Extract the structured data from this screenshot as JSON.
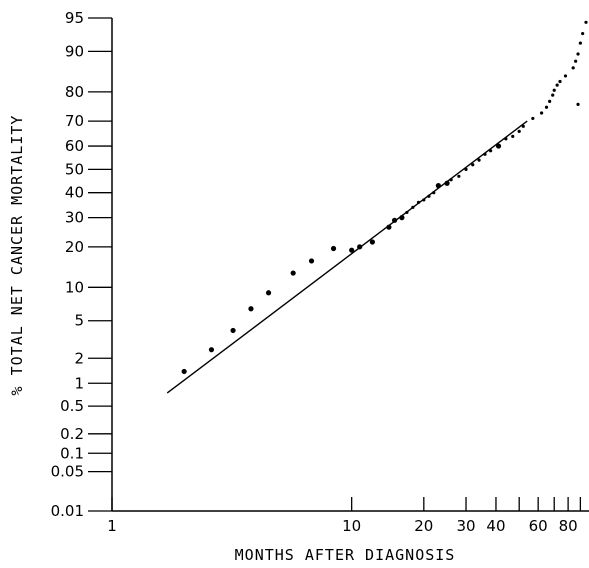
{
  "chart_data": {
    "type": "scatter",
    "title": "",
    "xlabel": "MONTHS AFTER DIAGNOSIS",
    "ylabel": "% TOTAL NET CANCER MORTALITY",
    "x_scale": "log",
    "y_scale": "probability",
    "xlim": [
      1,
      95
    ],
    "ylim": [
      0.01,
      95
    ],
    "grid": false,
    "legend": "none",
    "x_ticks": [
      {
        "value": 1,
        "label": "1"
      },
      {
        "value": 10,
        "label": "10"
      },
      {
        "value": 20,
        "label": "20"
      },
      {
        "value": 30,
        "label": "30"
      },
      {
        "value": 40,
        "label": "40"
      },
      {
        "value": 50,
        "label": ""
      },
      {
        "value": 60,
        "label": "60"
      },
      {
        "value": 70,
        "label": ""
      },
      {
        "value": 80,
        "label": "80"
      },
      {
        "value": 90,
        "label": ""
      }
    ],
    "y_ticks": [
      {
        "value": 0.01,
        "label": "0.01"
      },
      {
        "value": 0.05,
        "label": "0.05"
      },
      {
        "value": 0.1,
        "label": "0.1"
      },
      {
        "value": 0.2,
        "label": "0.2"
      },
      {
        "value": 0.5,
        "label": "0.5"
      },
      {
        "value": 1,
        "label": "1"
      },
      {
        "value": 2,
        "label": "2"
      },
      {
        "value": 5,
        "label": "5"
      },
      {
        "value": 10,
        "label": "10"
      },
      {
        "value": 20,
        "label": "20"
      },
      {
        "value": 30,
        "label": "30"
      },
      {
        "value": 40,
        "label": "40"
      },
      {
        "value": 50,
        "label": "50"
      },
      {
        "value": 60,
        "label": "60"
      },
      {
        "value": 70,
        "label": "70"
      },
      {
        "value": 80,
        "label": "80"
      },
      {
        "value": 90,
        "label": "90"
      },
      {
        "value": 95,
        "label": "95"
      }
    ],
    "points": [
      {
        "x": 2.0,
        "y": 1.4,
        "size": "large"
      },
      {
        "x": 2.6,
        "y": 2.5,
        "size": "large"
      },
      {
        "x": 3.2,
        "y": 4.0,
        "size": "large"
      },
      {
        "x": 3.8,
        "y": 6.5,
        "size": "large"
      },
      {
        "x": 4.5,
        "y": 9.0,
        "size": "large"
      },
      {
        "x": 5.7,
        "y": 13.0,
        "size": "large"
      },
      {
        "x": 6.8,
        "y": 16.0,
        "size": "large"
      },
      {
        "x": 8.4,
        "y": 19.5,
        "size": "large"
      },
      {
        "x": 10.0,
        "y": 19.0,
        "size": "large"
      },
      {
        "x": 10.8,
        "y": 20.0,
        "size": "large"
      },
      {
        "x": 12.2,
        "y": 21.5,
        "size": "large"
      },
      {
        "x": 14.3,
        "y": 26.5,
        "size": "large"
      },
      {
        "x": 15.1,
        "y": 29.0,
        "size": "large"
      },
      {
        "x": 16.2,
        "y": 30.0,
        "size": "large"
      },
      {
        "x": 17.0,
        "y": 32.0,
        "size": "small"
      },
      {
        "x": 18.0,
        "y": 34.0,
        "size": "small"
      },
      {
        "x": 19.0,
        "y": 36.0,
        "size": "small"
      },
      {
        "x": 20.0,
        "y": 37.0,
        "size": "small"
      },
      {
        "x": 21.0,
        "y": 38.5,
        "size": "small"
      },
      {
        "x": 22.0,
        "y": 40.0,
        "size": "small"
      },
      {
        "x": 23.0,
        "y": 43.0,
        "size": "large"
      },
      {
        "x": 25.0,
        "y": 44.0,
        "size": "large"
      },
      {
        "x": 26.0,
        "y": 45.5,
        "size": "small"
      },
      {
        "x": 28.0,
        "y": 47.0,
        "size": "small"
      },
      {
        "x": 30.0,
        "y": 50.0,
        "size": "small"
      },
      {
        "x": 32.0,
        "y": 52.0,
        "size": "small"
      },
      {
        "x": 34.0,
        "y": 54.0,
        "size": "small"
      },
      {
        "x": 36.0,
        "y": 56.5,
        "size": "small"
      },
      {
        "x": 38.0,
        "y": 58.0,
        "size": "small"
      },
      {
        "x": 41.0,
        "y": 60.0,
        "size": "large"
      },
      {
        "x": 44.0,
        "y": 63.0,
        "size": "small"
      },
      {
        "x": 47.0,
        "y": 64.0,
        "size": "small"
      },
      {
        "x": 50.0,
        "y": 66.0,
        "size": "small"
      },
      {
        "x": 52.0,
        "y": 68.0,
        "size": "small"
      },
      {
        "x": 57.0,
        "y": 71.0,
        "size": "small"
      },
      {
        "x": 62.0,
        "y": 73.0,
        "size": "small"
      },
      {
        "x": 65.0,
        "y": 75.0,
        "size": "small"
      },
      {
        "x": 67.0,
        "y": 77.0,
        "size": "small"
      },
      {
        "x": 69.0,
        "y": 79.0,
        "size": "small"
      },
      {
        "x": 70.0,
        "y": 80.5,
        "size": "small"
      },
      {
        "x": 72.0,
        "y": 82.0,
        "size": "small"
      },
      {
        "x": 74.0,
        "y": 83.0,
        "size": "small"
      },
      {
        "x": 78.0,
        "y": 84.5,
        "size": "small"
      },
      {
        "x": 84.0,
        "y": 86.5,
        "size": "small"
      },
      {
        "x": 86.0,
        "y": 88.0,
        "size": "small"
      },
      {
        "x": 88.0,
        "y": 89.5,
        "size": "small"
      },
      {
        "x": 90.0,
        "y": 91.5,
        "size": "small"
      },
      {
        "x": 92.0,
        "y": 93.0,
        "size": "small"
      },
      {
        "x": 95.0,
        "y": 94.5,
        "size": "small"
      },
      {
        "x": 88.0,
        "y": 76.0,
        "size": "small"
      }
    ],
    "fit_line": {
      "x": [
        1.7,
        54.0
      ],
      "y": [
        0.75,
        70.0
      ]
    }
  }
}
